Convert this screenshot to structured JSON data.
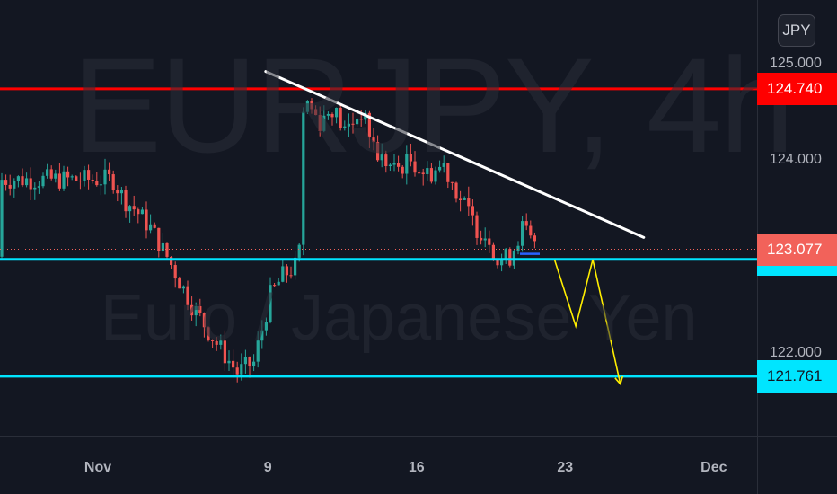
{
  "watermark": {
    "symbol": "EURJPY, 4h",
    "name": "Euro / Japanese Yen"
  },
  "currency_button": "JPY",
  "chart_data": {
    "type": "candlestick",
    "symbol": "EURJPY",
    "timeframe": "4h",
    "ylim": [
      121.0,
      125.3
    ],
    "y_ticks": [
      {
        "value": 125.0,
        "label": "125.000"
      },
      {
        "value": 124.0,
        "label": "124.000"
      },
      {
        "value": 122.0,
        "label": "122.000"
      }
    ],
    "x_ticks": [
      {
        "day": 1,
        "label": "Nov"
      },
      {
        "day": 9,
        "label": "9"
      },
      {
        "day": 16,
        "label": "16"
      },
      {
        "day": 23,
        "label": "23"
      },
      {
        "day": 30,
        "label": "Dec"
      }
    ],
    "colors": {
      "up": "#26a69a",
      "down": "#ef5350",
      "resistance": "#ff0000",
      "support": "#00e5ff",
      "trendline": "#ffffff",
      "projection": "#ffee00"
    },
    "levels": [
      {
        "name": "resistance",
        "value": 124.74,
        "label": "124.740",
        "color": "#ff0000"
      },
      {
        "name": "support",
        "value": 122.973,
        "label": "122.973",
        "color": "#00e5ff"
      },
      {
        "name": "target",
        "value": 121.761,
        "label": "121.761",
        "color": "#00e5ff"
      }
    ],
    "last_price": {
      "value": 123.077,
      "label": "123.077",
      "color": "#f2625a"
    },
    "trendline": [
      {
        "day": 8.9,
        "value": 124.92
      },
      {
        "day": 26.7,
        "value": 123.2
      }
    ],
    "projection": [
      {
        "day": 22.5,
        "value": 122.97
      },
      {
        "day": 23.5,
        "value": 122.28
      },
      {
        "day": 24.3,
        "value": 122.97
      },
      {
        "day": 25.6,
        "value": 121.68
      }
    ],
    "anchors": [
      {
        "day": 27.0,
        "value": 123.8
      },
      {
        "day": 29.5,
        "value": 123.6
      },
      {
        "day": 32.0,
        "value": 123.5
      },
      {
        "day": 36.0,
        "value": 123.3
      },
      {
        "day": 40.0,
        "value": 123.0
      },
      {
        "day": 46.0,
        "value": 122.5
      },
      {
        "day": 52.0,
        "value": 122.1
      },
      {
        "day": 57.0,
        "value": 121.8
      },
      {
        "day": 61.0,
        "value": 121.9
      },
      {
        "day": 65.0,
        "value": 122.6
      },
      {
        "day": 68.0,
        "value": 122.8
      },
      {
        "day": 71.0,
        "value": 122.9
      },
      {
        "day": 73.0,
        "value": 123.2
      },
      {
        "day": 74.0,
        "value": 124.6
      },
      {
        "day": 77.0,
        "value": 124.4
      },
      {
        "day": 80.0,
        "value": 124.55
      },
      {
        "day": 83.0,
        "value": 124.3
      },
      {
        "day": 87.0,
        "value": 124.5
      },
      {
        "day": 91.0,
        "value": 124.05
      },
      {
        "day": 95.0,
        "value": 123.9
      },
      {
        "day": 99.0,
        "value": 124.0
      },
      {
        "day": 103.0,
        "value": 123.85
      },
      {
        "day": 107.0,
        "value": 123.95
      },
      {
        "day": 111.0,
        "value": 123.6
      },
      {
        "day": 115.0,
        "value": 123.3
      },
      {
        "day": 118.0,
        "value": 123.2
      },
      {
        "day": 120.0,
        "value": 122.95
      },
      {
        "day": 123.0,
        "value": 123.0
      },
      {
        "day": 126.0,
        "value": 123.3
      },
      {
        "day": 129.0,
        "value": 123.1
      }
    ]
  }
}
